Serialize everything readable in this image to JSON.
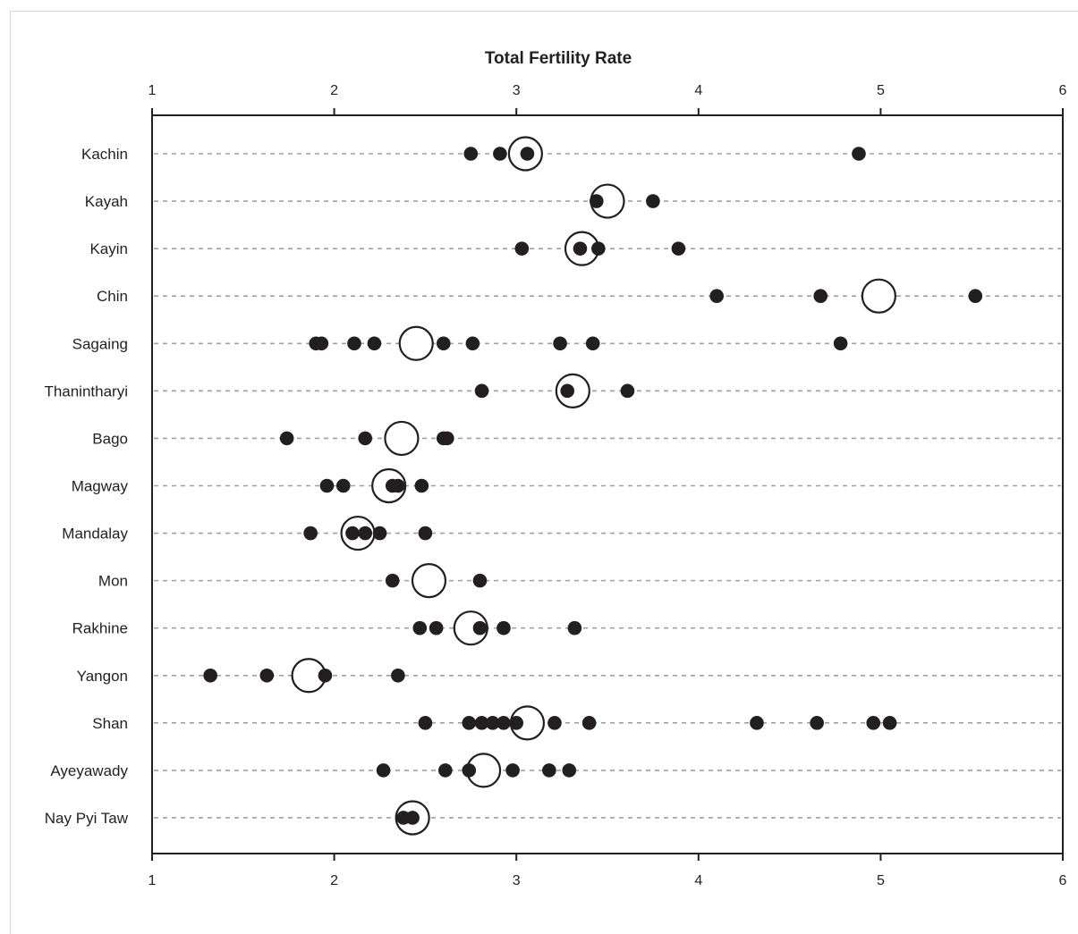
{
  "chart_data": {
    "type": "scatter",
    "title": "",
    "xlabel": "Total Fertility Rate",
    "ylabel": "",
    "xlim": [
      1,
      6
    ],
    "xticks": [
      "1",
      "2",
      "3",
      "4",
      "5",
      "6"
    ],
    "grid": "horizontal dashed row guides",
    "marker_small": "filled dot",
    "marker_large": "open circle",
    "colors": {
      "ink": "#231f20",
      "guide": "#a0a0a0",
      "marker_fill": "#ffffff"
    },
    "categories": [
      {
        "name": "Kachin",
        "values": [
          2.75,
          2.91,
          3.06,
          4.88
        ],
        "highlight": 3.05
      },
      {
        "name": "Kayah",
        "values": [
          3.44,
          3.75
        ],
        "highlight": 3.5
      },
      {
        "name": "Kayin",
        "values": [
          3.03,
          3.35,
          3.45,
          3.89
        ],
        "highlight": 3.36
      },
      {
        "name": "Chin",
        "values": [
          4.1,
          4.67,
          5.52
        ],
        "highlight": 4.99
      },
      {
        "name": "Sagaing",
        "values": [
          1.9,
          1.93,
          2.11,
          2.22,
          2.6,
          2.76,
          3.24,
          3.42,
          4.78
        ],
        "highlight": 2.45
      },
      {
        "name": "Thanintharyi",
        "values": [
          2.81,
          3.28,
          3.61
        ],
        "highlight": 3.31
      },
      {
        "name": "Bago",
        "values": [
          1.74,
          2.17,
          2.6,
          2.62
        ],
        "highlight": 2.37
      },
      {
        "name": "Magway",
        "values": [
          1.96,
          2.05,
          2.32,
          2.35,
          2.48
        ],
        "highlight": 2.3
      },
      {
        "name": "Mandalay",
        "values": [
          1.87,
          2.1,
          2.17,
          2.25,
          2.5
        ],
        "highlight": 2.13
      },
      {
        "name": "Mon",
        "values": [
          2.32,
          2.8
        ],
        "highlight": 2.52
      },
      {
        "name": "Rakhine",
        "values": [
          2.47,
          2.56,
          2.8,
          2.93,
          3.32
        ],
        "highlight": 2.75
      },
      {
        "name": "Yangon",
        "values": [
          1.32,
          1.63,
          1.95,
          2.35
        ],
        "highlight": 1.86
      },
      {
        "name": "Shan",
        "values": [
          2.5,
          2.74,
          2.81,
          2.87,
          2.93,
          3.0,
          3.21,
          3.4,
          4.32,
          4.65,
          4.96,
          5.05
        ],
        "highlight": 3.06
      },
      {
        "name": "Ayeyawady",
        "values": [
          2.27,
          2.61,
          2.74,
          2.98,
          3.18,
          3.29
        ],
        "highlight": 2.82
      },
      {
        "name": "Nay Pyi Taw",
        "values": [
          2.38,
          2.43
        ],
        "highlight": 2.43
      }
    ]
  }
}
